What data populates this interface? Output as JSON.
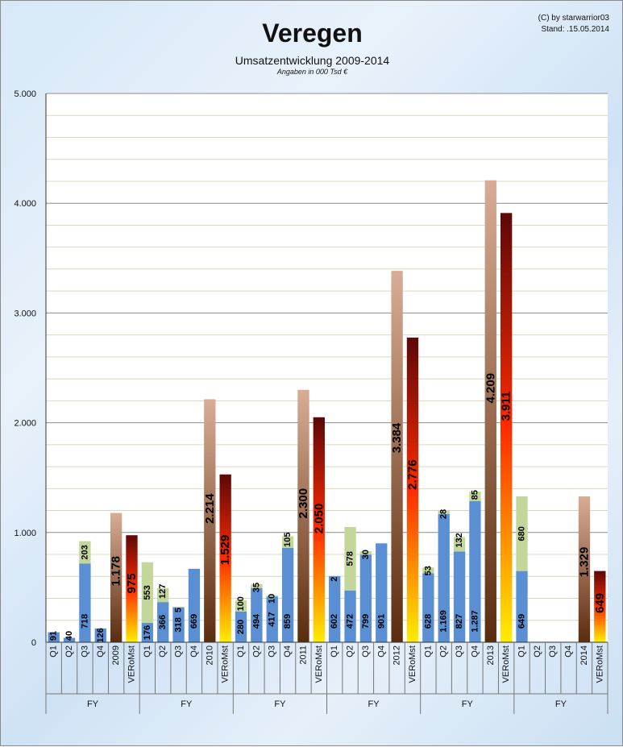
{
  "header": {
    "title": "Veregen",
    "subtitle": "Umsatzentwicklung 2009-2014",
    "units_note": "Angaben in 000 Tsd €",
    "copyright": "(C) by starwarrior03",
    "stand": "Stand: .15.05.2014"
  },
  "colors": {
    "quarter_blue": "#5b8fd4",
    "increment_green": "#c3d79b",
    "fy_brown_top": "#d9ad95",
    "fy_brown_bottom": "#5a2c0e",
    "veromst_top": "#5c0808",
    "veromst_mid": "#ff2a00",
    "veromst_bottom": "#ffee00"
  },
  "chart_data": {
    "type": "bar",
    "title": "Umsatzentwicklung 2009-2014",
    "ylim": [
      0,
      5000
    ],
    "y_major_ticks": [
      0,
      1000,
      2000,
      3000,
      4000,
      5000
    ],
    "y_tick_labels": [
      "0",
      "1.000",
      "2.000",
      "3.000",
      "4.000",
      "5.000"
    ],
    "grid": true,
    "groups": [
      {
        "group_label": "FY",
        "bars": [
          {
            "label": "Q1",
            "kind": "quarter",
            "value": 91,
            "value_label": "91"
          },
          {
            "label": "Q2",
            "kind": "quarter",
            "value": 40,
            "value_label": "40"
          },
          {
            "label": "Q3",
            "kind": "quarter",
            "value": 718,
            "value_label": "718",
            "increment": 203,
            "increment_label": "203"
          },
          {
            "label": "Q4",
            "kind": "quarter",
            "value": 126,
            "value_label": "126"
          },
          {
            "label": "2009",
            "kind": "fy",
            "value": 1178,
            "value_label": "1.178"
          },
          {
            "label": "VERoMst",
            "kind": "veromst",
            "value": 975,
            "value_label": "975"
          }
        ]
      },
      {
        "group_label": "FY",
        "bars": [
          {
            "label": "Q1",
            "kind": "quarter",
            "value": 176,
            "value_label": "176",
            "increment": 553,
            "increment_label": "553"
          },
          {
            "label": "Q2",
            "kind": "quarter",
            "value": 366,
            "value_label": "366",
            "increment": 127,
            "increment_label": "127"
          },
          {
            "label": "Q3",
            "kind": "quarter",
            "value": 318,
            "value_label": "318",
            "increment": 5,
            "increment_label": "5"
          },
          {
            "label": "Q4",
            "kind": "quarter",
            "value": 669,
            "value_label": "669"
          },
          {
            "label": "2010",
            "kind": "fy",
            "value": 2214,
            "value_label": "2.214"
          },
          {
            "label": "VERoMst",
            "kind": "veromst",
            "value": 1529,
            "value_label": "1.529"
          }
        ]
      },
      {
        "group_label": "FY",
        "bars": [
          {
            "label": "Q1",
            "kind": "quarter",
            "value": 280,
            "value_label": "280",
            "increment": 100,
            "increment_label": "100"
          },
          {
            "label": "Q2",
            "kind": "quarter",
            "value": 494,
            "value_label": "494",
            "increment": 35,
            "increment_label": "35"
          },
          {
            "label": "Q3",
            "kind": "quarter",
            "value": 417,
            "value_label": "417",
            "increment": 10,
            "increment_label": "10"
          },
          {
            "label": "Q4",
            "kind": "quarter",
            "value": 859,
            "value_label": "859",
            "increment": 105,
            "increment_label": "105"
          },
          {
            "label": "2011",
            "kind": "fy",
            "value": 2300,
            "value_label": "2.300"
          },
          {
            "label": "VERoMst",
            "kind": "veromst",
            "value": 2050,
            "value_label": "2.050"
          }
        ]
      },
      {
        "group_label": "FY",
        "bars": [
          {
            "label": "Q1",
            "kind": "quarter",
            "value": 602,
            "value_label": "602",
            "increment": 2,
            "increment_label": "2"
          },
          {
            "label": "Q2",
            "kind": "quarter",
            "value": 472,
            "value_label": "472",
            "increment": 578,
            "increment_label": "578"
          },
          {
            "label": "Q3",
            "kind": "quarter",
            "value": 799,
            "value_label": "799",
            "increment": 30,
            "increment_label": "30"
          },
          {
            "label": "Q4",
            "kind": "quarter",
            "value": 901,
            "value_label": "901"
          },
          {
            "label": "2012",
            "kind": "fy",
            "value": 3384,
            "value_label": "3.384"
          },
          {
            "label": "VERoMst",
            "kind": "veromst",
            "value": 2776,
            "value_label": "2.776"
          }
        ]
      },
      {
        "group_label": "FY",
        "bars": [
          {
            "label": "Q1",
            "kind": "quarter",
            "value": 628,
            "value_label": "628",
            "increment": 53,
            "increment_label": "53"
          },
          {
            "label": "Q2",
            "kind": "quarter",
            "value": 1169,
            "value_label": "1.169",
            "increment": 28,
            "increment_label": "28"
          },
          {
            "label": "Q3",
            "kind": "quarter",
            "value": 827,
            "value_label": "827",
            "increment": 132,
            "increment_label": "132"
          },
          {
            "label": "Q4",
            "kind": "quarter",
            "value": 1287,
            "value_label": "1.287",
            "increment": 85,
            "increment_label": "85"
          },
          {
            "label": "2013",
            "kind": "fy",
            "value": 4209,
            "value_label": "4.209"
          },
          {
            "label": "VERoMst",
            "kind": "veromst",
            "value": 3911,
            "value_label": "3.911"
          }
        ]
      },
      {
        "group_label": "FY",
        "bars": [
          {
            "label": "Q1",
            "kind": "quarter",
            "value": 649,
            "value_label": "649",
            "increment": 680,
            "increment_label": "680"
          },
          {
            "label": "Q2",
            "kind": "quarter",
            "value": 0
          },
          {
            "label": "Q3",
            "kind": "quarter",
            "value": 0
          },
          {
            "label": "Q4",
            "kind": "quarter",
            "value": 0
          },
          {
            "label": "2014",
            "kind": "fy",
            "value": 1329,
            "value_label": "1.329"
          },
          {
            "label": "VERoMst",
            "kind": "veromst",
            "value": 649,
            "value_label": "649"
          }
        ]
      }
    ]
  }
}
